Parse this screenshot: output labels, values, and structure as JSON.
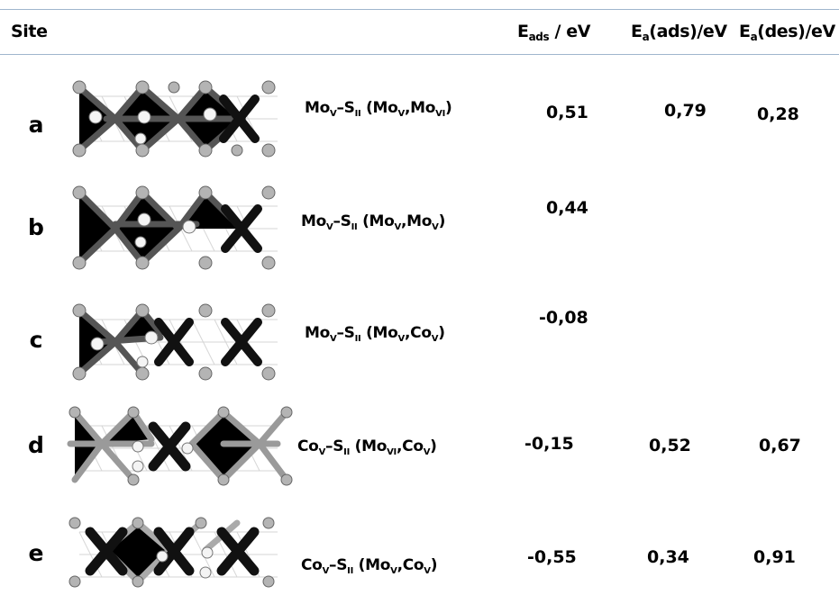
{
  "table": {
    "headers": {
      "site": "Site",
      "eads": {
        "main": "E",
        "sub": "ads",
        "rest": " / eV"
      },
      "ea_ads": {
        "main": "E",
        "sub": "a",
        "rest": "(ads)/eV"
      },
      "ea_des": {
        "main": "E",
        "sub": "a",
        "rest": "(des)/eV"
      }
    },
    "rows": [
      {
        "site": "a",
        "structure_icon": "mos2-cluster-structure",
        "formula": {
          "metal": "Mo",
          "metal_sub": "V",
          "sep": "–",
          "s": "S",
          "s_sub": "II",
          "p1": "Mo",
          "p1_sub": "V",
          "comma": ",",
          "p2": "Mo",
          "p2_sub": "VI"
        },
        "eads": "0,51",
        "ea_ads": "0,79",
        "ea_des": "0,28"
      },
      {
        "site": "b",
        "structure_icon": "mos2-cluster-structure",
        "formula": {
          "metal": "Mo",
          "metal_sub": "V",
          "sep": "–",
          "s": "S",
          "s_sub": "II",
          "p1": "Mo",
          "p1_sub": "V",
          "comma": ",",
          "p2": "Mo",
          "p2_sub": "V"
        },
        "eads": "0,44",
        "ea_ads": "",
        "ea_des": ""
      },
      {
        "site": "c",
        "structure_icon": "mos2-cluster-structure",
        "formula": {
          "metal": "Mo",
          "metal_sub": "V",
          "sep": "–",
          "s": "S",
          "s_sub": "II",
          "p1": "Mo",
          "p1_sub": "V",
          "comma": ",",
          "p2": "Co",
          "p2_sub": "V"
        },
        "eads": "-0,08",
        "ea_ads": "",
        "ea_des": ""
      },
      {
        "site": "d",
        "structure_icon": "comos-cluster-structure",
        "formula": {
          "metal": "Co",
          "metal_sub": "V",
          "sep": "–",
          "s": "S",
          "s_sub": "II",
          "p1": "Mo",
          "p1_sub": "VI",
          "comma": ",",
          "p2": "Co",
          "p2_sub": "V"
        },
        "eads": "-0,15",
        "ea_ads": "0,52",
        "ea_des": "0,67"
      },
      {
        "site": "e",
        "structure_icon": "comos-cluster-structure",
        "formula": {
          "metal": "Co",
          "metal_sub": "V",
          "sep": "–",
          "s": "S",
          "s_sub": "II",
          "p1": "Mo",
          "p1_sub": "V",
          "comma": ",",
          "p2": "Co",
          "p2_sub": "V"
        },
        "eads": "-0,55",
        "ea_ads": "0,34",
        "ea_des": "0,91"
      }
    ]
  },
  "colors": {
    "rule": "#9fb6cd",
    "sulfur": "#b4b4b4",
    "metal_mo": "#555555",
    "metal_co": "#111111",
    "hydrogen": "#f4f4f4"
  }
}
